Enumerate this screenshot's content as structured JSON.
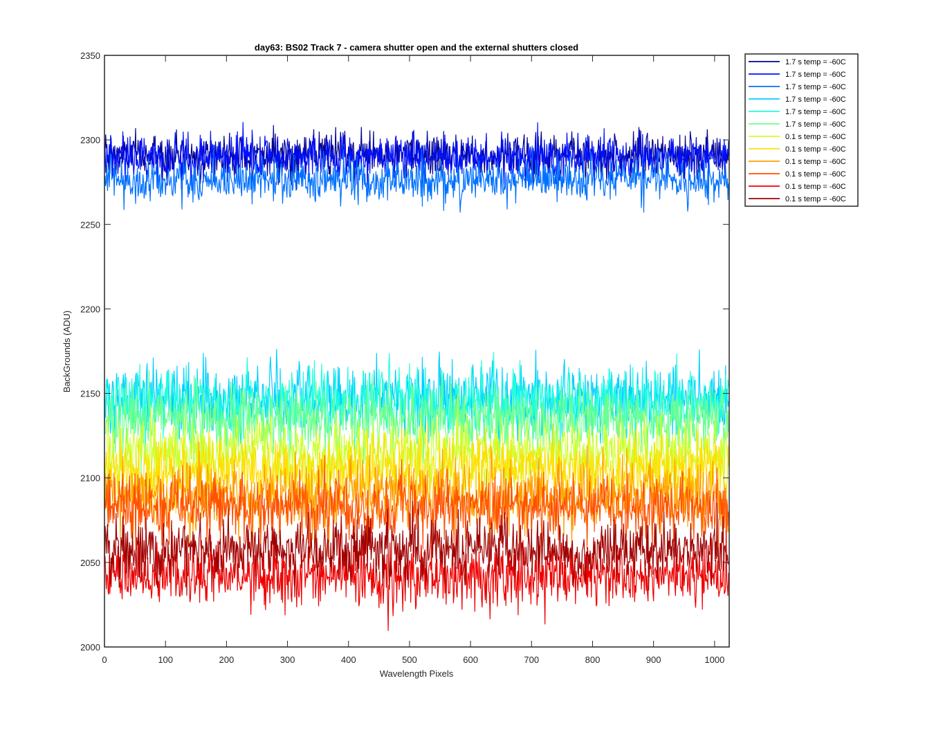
{
  "chart_data": {
    "type": "line",
    "title": "day63: BS02  Track 7 - camera shutter open and the external shutters closed",
    "xlabel": "Wavelength Pixels",
    "ylabel": "BackGrounds (ADU)",
    "xlim": [
      0,
      1024
    ],
    "ylim": [
      2000,
      2350
    ],
    "xticks": [
      0,
      100,
      200,
      300,
      400,
      500,
      600,
      700,
      800,
      900,
      1000
    ],
    "yticks": [
      2000,
      2050,
      2100,
      2150,
      2200,
      2250,
      2300,
      2350
    ],
    "n_points": 1024,
    "legend_position": "outside-top-right",
    "series": [
      {
        "name": "1.7 s temp = -60C",
        "color": "#00008f",
        "mean": 2291,
        "noise": 6.5
      },
      {
        "name": "1.7 s temp = -60C",
        "color": "#0010ff",
        "mean": 2290,
        "noise": 6.5
      },
      {
        "name": "1.7 s temp = -60C",
        "color": "#0070ff",
        "mean": 2276,
        "noise": 6.5
      },
      {
        "name": "1.7 s temp = -60C",
        "color": "#00cfff",
        "mean": 2147,
        "noise": 10
      },
      {
        "name": "1.7 s temp = -60C",
        "color": "#1fffdf",
        "mean": 2145,
        "noise": 10
      },
      {
        "name": "1.7 s temp = -60C",
        "color": "#70ff8f",
        "mean": 2135,
        "noise": 10
      },
      {
        "name": "0.1 s temp = -60C",
        "color": "#cfff2f",
        "mean": 2115,
        "noise": 10
      },
      {
        "name": "0.1 s temp = -60C",
        "color": "#ffdf00",
        "mean": 2105,
        "noise": 10
      },
      {
        "name": "0.1 s temp = -60C",
        "color": "#ff9f00",
        "mean": 2090,
        "noise": 10
      },
      {
        "name": "0.1 s temp = -60C",
        "color": "#ff5000",
        "mean": 2082,
        "noise": 10
      },
      {
        "name": "0.1 s temp = -60C",
        "color": "#ef0000",
        "mean": 2042,
        "noise": 9
      },
      {
        "name": "0.1 s temp = -60C",
        "color": "#9f0000",
        "mean": 2057,
        "noise": 9
      }
    ]
  }
}
